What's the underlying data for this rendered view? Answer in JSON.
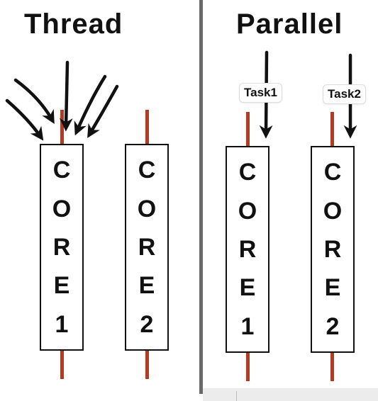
{
  "thread": {
    "title": "Thread",
    "cores": [
      {
        "letters": [
          "C",
          "O",
          "R",
          "E",
          "1"
        ]
      },
      {
        "letters": [
          "C",
          "O",
          "R",
          "E",
          "2"
        ]
      }
    ]
  },
  "parallel": {
    "title": "Parallel",
    "tasks": [
      "Task1",
      "Task2"
    ],
    "cores": [
      {
        "letters": [
          "C",
          "O",
          "R",
          "E",
          "1"
        ]
      },
      {
        "letters": [
          "C",
          "O",
          "R",
          "E",
          "2"
        ]
      }
    ]
  }
}
